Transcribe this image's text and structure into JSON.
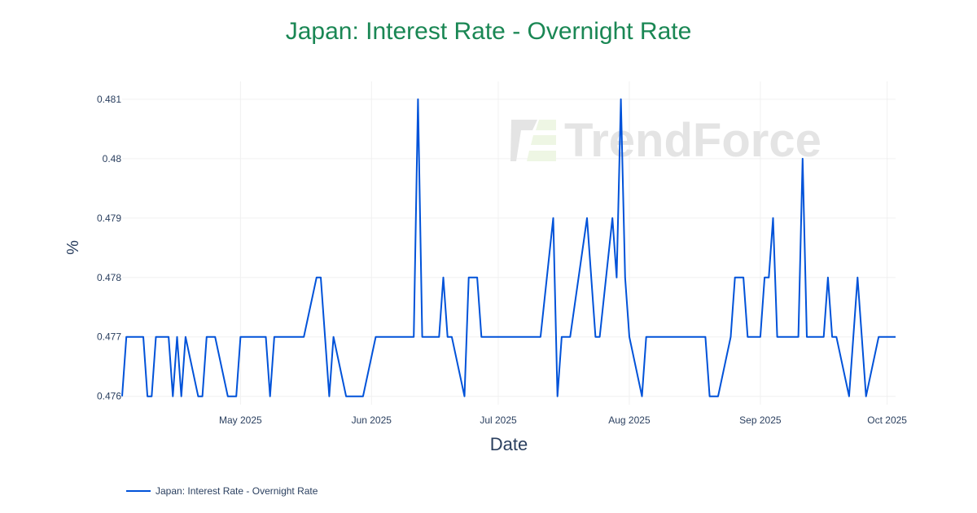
{
  "chart_data": {
    "type": "line",
    "title": "Japan: Interest Rate - Overnight Rate",
    "xlabel": "Date",
    "ylabel": "%",
    "xlim": [
      "2025-04-03",
      "2025-10-03"
    ],
    "ylim": [
      0.4759,
      0.4813
    ],
    "grid": true,
    "legend_position": "bottom-left",
    "x_ticks": [
      {
        "date": "2025-05-01",
        "label": "May 2025"
      },
      {
        "date": "2025-06-01",
        "label": "Jun 2025"
      },
      {
        "date": "2025-07-01",
        "label": "Jul 2025"
      },
      {
        "date": "2025-08-01",
        "label": "Aug 2025"
      },
      {
        "date": "2025-09-01",
        "label": "Sep 2025"
      },
      {
        "date": "2025-10-01",
        "label": "Oct 2025"
      }
    ],
    "y_ticks": [
      {
        "value": 0.476,
        "label": "0.476"
      },
      {
        "value": 0.477,
        "label": "0.477"
      },
      {
        "value": 0.478,
        "label": "0.478"
      },
      {
        "value": 0.479,
        "label": "0.479"
      },
      {
        "value": 0.48,
        "label": "0.48"
      },
      {
        "value": 0.481,
        "label": "0.481"
      }
    ],
    "series": [
      {
        "name": "Japan: Interest Rate - Overnight Rate",
        "color": "#0052d9",
        "x": [
          "2025-04-03",
          "2025-04-04",
          "2025-04-08",
          "2025-04-09",
          "2025-04-10",
          "2025-04-11",
          "2025-04-14",
          "2025-04-15",
          "2025-04-16",
          "2025-04-17",
          "2025-04-18",
          "2025-04-21",
          "2025-04-22",
          "2025-04-23",
          "2025-04-25",
          "2025-04-28",
          "2025-04-30",
          "2025-05-01",
          "2025-05-07",
          "2025-05-08",
          "2025-05-09",
          "2025-05-16",
          "2025-05-19",
          "2025-05-20",
          "2025-05-22",
          "2025-05-23",
          "2025-05-26",
          "2025-05-30",
          "2025-06-02",
          "2025-06-11",
          "2025-06-12",
          "2025-06-13",
          "2025-06-17",
          "2025-06-18",
          "2025-06-19",
          "2025-06-20",
          "2025-06-23",
          "2025-06-24",
          "2025-06-26",
          "2025-06-27",
          "2025-07-11",
          "2025-07-14",
          "2025-07-15",
          "2025-07-16",
          "2025-07-18",
          "2025-07-22",
          "2025-07-24",
          "2025-07-25",
          "2025-07-28",
          "2025-07-29",
          "2025-07-30",
          "2025-07-31",
          "2025-08-01",
          "2025-08-04",
          "2025-08-05",
          "2025-08-19",
          "2025-08-20",
          "2025-08-22",
          "2025-08-25",
          "2025-08-26",
          "2025-08-28",
          "2025-08-29",
          "2025-09-01",
          "2025-09-02",
          "2025-09-03",
          "2025-09-04",
          "2025-09-05",
          "2025-09-10",
          "2025-09-11",
          "2025-09-12",
          "2025-09-16",
          "2025-09-17",
          "2025-09-18",
          "2025-09-19",
          "2025-09-22",
          "2025-09-24",
          "2025-09-26",
          "2025-09-29",
          "2025-10-03"
        ],
        "values": [
          0.476,
          0.477,
          0.477,
          0.476,
          0.476,
          0.477,
          0.477,
          0.476,
          0.477,
          0.476,
          0.477,
          0.476,
          0.476,
          0.477,
          0.477,
          0.476,
          0.476,
          0.477,
          0.477,
          0.476,
          0.477,
          0.477,
          0.478,
          0.478,
          0.476,
          0.477,
          0.476,
          0.476,
          0.477,
          0.477,
          0.481,
          0.477,
          0.477,
          0.478,
          0.477,
          0.477,
          0.476,
          0.478,
          0.478,
          0.477,
          0.477,
          0.479,
          0.476,
          0.477,
          0.477,
          0.479,
          0.477,
          0.477,
          0.479,
          0.478,
          0.481,
          0.478,
          0.477,
          0.476,
          0.477,
          0.477,
          0.476,
          0.476,
          0.477,
          0.478,
          0.478,
          0.477,
          0.477,
          0.478,
          0.478,
          0.479,
          0.477,
          0.477,
          0.48,
          0.477,
          0.477,
          0.478,
          0.477,
          0.477,
          0.476,
          0.478,
          0.476,
          0.477,
          0.477
        ]
      }
    ]
  },
  "watermark": "TrendForce"
}
